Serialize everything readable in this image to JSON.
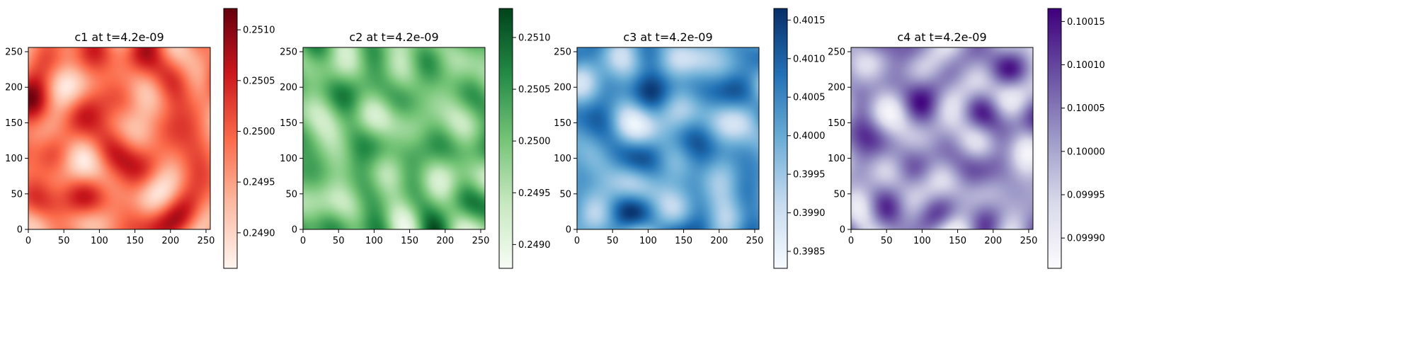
{
  "chart_data": [
    {
      "type": "heatmap",
      "title": "c1 at t=4.2e-09",
      "colormap": "Reds",
      "colors": [
        "#fff5f0",
        "#fcbba1",
        "#fb6a4a",
        "#cb181d",
        "#67000d"
      ],
      "xlim": [
        0,
        256
      ],
      "ylim": [
        0,
        256
      ],
      "xticks": [
        0,
        50,
        100,
        150,
        200,
        250
      ],
      "yticks": [
        0,
        50,
        100,
        150,
        200,
        250
      ],
      "colorbar": {
        "vmin": 0.24865,
        "vmax": 0.25121,
        "ticks": [
          0.249,
          0.2495,
          0.25,
          0.2505,
          0.251
        ],
        "tick_labels": [
          "0.2490",
          "0.2495",
          "0.2500",
          "0.2505",
          "0.2510"
        ]
      },
      "field_seed": 11
    },
    {
      "type": "heatmap",
      "title": "c2 at t=4.2e-09",
      "colormap": "Greens",
      "colors": [
        "#f7fcf5",
        "#c7e9c0",
        "#74c476",
        "#238b45",
        "#00441b"
      ],
      "xlim": [
        0,
        256
      ],
      "ylim": [
        0,
        256
      ],
      "xticks": [
        0,
        50,
        100,
        150,
        200,
        250
      ],
      "yticks": [
        0,
        50,
        100,
        150,
        200,
        250
      ],
      "colorbar": {
        "vmin": 0.24877,
        "vmax": 0.25128,
        "ticks": [
          0.249,
          0.2495,
          0.25,
          0.2505,
          0.251
        ],
        "tick_labels": [
          "0.2490",
          "0.2495",
          "0.2500",
          "0.2505",
          "0.2510"
        ]
      },
      "field_seed": 23
    },
    {
      "type": "heatmap",
      "title": "c3 at t=4.2e-09",
      "colormap": "Blues",
      "colors": [
        "#f7fbff",
        "#c6dbef",
        "#6baed6",
        "#2171b5",
        "#08306b"
      ],
      "xlim": [
        0,
        256
      ],
      "ylim": [
        0,
        256
      ],
      "xticks": [
        0,
        50,
        100,
        150,
        200,
        250
      ],
      "yticks": [
        0,
        50,
        100,
        150,
        200,
        250
      ],
      "colorbar": {
        "vmin": 0.39828,
        "vmax": 0.40165,
        "ticks": [
          0.3985,
          0.399,
          0.3995,
          0.4,
          0.4005,
          0.401,
          0.4015
        ],
        "tick_labels": [
          "0.3985",
          "0.3990",
          "0.3995",
          "0.4000",
          "0.4005",
          "0.4010",
          "0.4015"
        ]
      },
      "field_seed": 37
    },
    {
      "type": "heatmap",
      "title": "c4 at t=4.2e-09",
      "colormap": "Purples",
      "colors": [
        "#fcfbfd",
        "#dadaeb",
        "#9e9ac8",
        "#6a51a3",
        "#3f007d"
      ],
      "xlim": [
        0,
        256
      ],
      "ylim": [
        0,
        256
      ],
      "xticks": [
        0,
        50,
        100,
        150,
        200,
        250
      ],
      "yticks": [
        0,
        50,
        100,
        150,
        200,
        250
      ],
      "colorbar": {
        "vmin": 0.099865,
        "vmax": 0.100165,
        "ticks": [
          0.0999,
          0.09995,
          0.1,
          0.10005,
          0.1001,
          0.10015
        ],
        "tick_labels": [
          "0.09990",
          "0.09995",
          "0.10000",
          "0.10005",
          "0.10010",
          "0.10015"
        ]
      },
      "field_seed": 53
    }
  ]
}
